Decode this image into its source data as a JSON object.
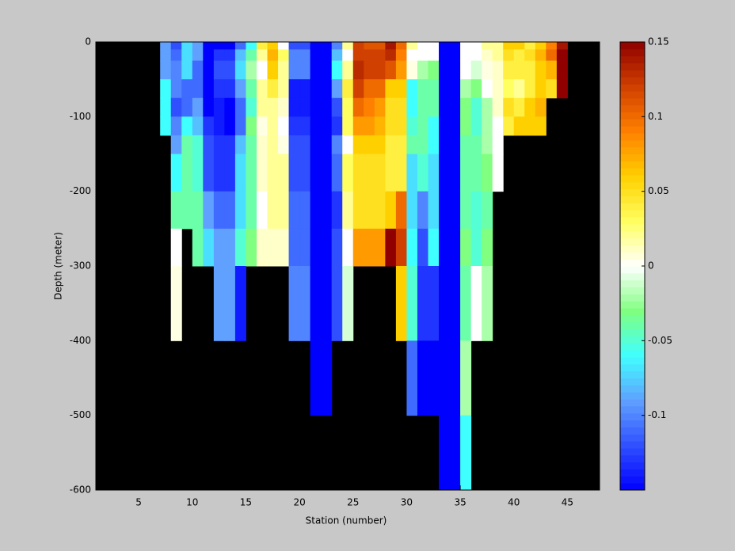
{
  "chart_data": {
    "type": "heatmap",
    "xlabel": "Station (number)",
    "ylabel": "Depth (meter)",
    "xlim": [
      1,
      48
    ],
    "ylim": [
      -600,
      0
    ],
    "xticks": [
      5,
      10,
      15,
      20,
      25,
      30,
      35,
      40,
      45
    ],
    "yticks": [
      0,
      -100,
      -200,
      -300,
      -400,
      -500,
      -600
    ],
    "clim": [
      -0.15,
      0.15
    ],
    "cticks": [
      0.15,
      0.1,
      0.05,
      0,
      -0.05,
      -0.1
    ],
    "background": "#000000",
    "colormap": [
      "#0000ff",
      "#3050ff",
      "#60a0ff",
      "#40ffff",
      "#80ff80",
      "#ffffff",
      "#ffff60",
      "#ffd000",
      "#ff8000",
      "#d04000",
      "#900000"
    ],
    "x_edges": [
      7,
      8,
      9,
      10,
      11,
      12,
      13,
      14,
      15,
      16,
      17,
      18,
      19,
      20,
      21,
      22,
      23,
      24,
      25,
      26,
      27,
      28,
      29,
      30,
      31,
      32,
      33,
      34,
      35,
      36,
      37,
      38,
      39,
      40,
      41,
      42,
      43,
      44,
      45
    ],
    "y_edges": [
      0,
      -10,
      -25,
      -50,
      -75,
      -100,
      -125,
      -150,
      -200,
      -250,
      -300,
      -400,
      -500,
      -600
    ],
    "values": [
      [
        -0.09,
        -0.09,
        -0.09,
        -0.06,
        -0.06,
        -0.06,
        null,
        null,
        null,
        null,
        null,
        null,
        null
      ],
      [
        -0.12,
        -0.11,
        -0.1,
        -0.1,
        -0.12,
        -0.1,
        -0.09,
        -0.06,
        -0.04,
        0,
        0.005,
        null,
        null
      ],
      [
        -0.07,
        -0.07,
        -0.07,
        -0.11,
        -0.11,
        -0.06,
        -0.04,
        -0.04,
        -0.04,
        null,
        null,
        null,
        null
      ],
      [
        -0.09,
        -0.09,
        -0.11,
        -0.11,
        -0.09,
        -0.08,
        -0.05,
        -0.05,
        -0.04,
        -0.04,
        null,
        null,
        null
      ],
      [
        -0.15,
        -0.15,
        -0.15,
        -0.15,
        -0.15,
        -0.13,
        -0.12,
        -0.12,
        -0.09,
        -0.07,
        null,
        null,
        null
      ],
      [
        -0.15,
        -0.13,
        -0.12,
        -0.13,
        -0.14,
        -0.14,
        -0.13,
        -0.13,
        -0.11,
        -0.09,
        -0.09,
        null,
        null
      ],
      [
        -0.15,
        -0.13,
        -0.12,
        -0.13,
        -0.15,
        -0.15,
        -0.13,
        -0.13,
        -0.11,
        -0.09,
        -0.09,
        null,
        null
      ],
      [
        -0.11,
        -0.08,
        -0.07,
        -0.09,
        -0.11,
        -0.11,
        -0.08,
        -0.07,
        -0.07,
        -0.05,
        -0.14,
        null,
        null
      ],
      [
        -0.06,
        -0.04,
        -0.02,
        -0.04,
        -0.05,
        -0.03,
        -0.04,
        -0.04,
        -0.04,
        -0.03,
        null,
        null,
        null
      ],
      [
        0.04,
        0.02,
        0,
        0.02,
        0.02,
        0.005,
        0.01,
        0.01,
        0,
        0.01,
        null,
        null,
        null
      ],
      [
        0.06,
        0.07,
        0.06,
        0.04,
        0.02,
        0.02,
        0.02,
        0.02,
        0.02,
        0.01,
        null,
        null,
        null
      ],
      [
        0,
        0.03,
        0.02,
        0.02,
        0.01,
        0,
        0.005,
        0.02,
        0.02,
        0.01,
        null,
        null,
        null
      ],
      [
        -0.12,
        -0.1,
        -0.1,
        -0.14,
        -0.14,
        -0.13,
        -0.12,
        -0.12,
        -0.11,
        -0.11,
        -0.1,
        null,
        null
      ],
      [
        -0.12,
        -0.1,
        -0.1,
        -0.14,
        -0.14,
        -0.13,
        -0.12,
        -0.12,
        -0.11,
        -0.11,
        -0.1,
        null,
        null
      ],
      [
        -0.15,
        -0.15,
        -0.15,
        -0.15,
        -0.15,
        -0.15,
        -0.15,
        -0.15,
        -0.15,
        -0.15,
        -0.15,
        -0.15,
        null
      ],
      [
        -0.15,
        -0.15,
        -0.15,
        -0.15,
        -0.15,
        -0.15,
        -0.15,
        -0.15,
        -0.15,
        -0.15,
        -0.15,
        -0.15,
        null
      ],
      [
        -0.1,
        -0.08,
        -0.06,
        -0.09,
        -0.12,
        -0.13,
        -0.1,
        -0.11,
        -0.13,
        -0.12,
        -0.12,
        null,
        null
      ],
      [
        0.02,
        0,
        0.02,
        0.04,
        0.03,
        0.03,
        0,
        0.03,
        0.02,
        0,
        -0.01,
        null,
        null
      ],
      [
        0.12,
        0.12,
        0.13,
        0.12,
        0.1,
        0.08,
        0.06,
        0.05,
        0.05,
        0.08,
        null,
        null,
        null
      ],
      [
        0.11,
        0.12,
        0.12,
        0.1,
        0.09,
        0.08,
        0.06,
        0.05,
        0.05,
        0.08,
        null,
        null,
        null
      ],
      [
        0.11,
        0.12,
        0.12,
        0.1,
        0.08,
        0.07,
        0.06,
        0.05,
        0.05,
        0.08,
        null,
        null,
        null
      ],
      [
        0.14,
        0.13,
        0.11,
        0.06,
        0.05,
        0.05,
        0.04,
        0.04,
        0.06,
        0.15,
        null,
        null,
        null
      ],
      [
        0.1,
        0.09,
        0.08,
        0.06,
        0.05,
        0.05,
        0.04,
        0.04,
        0.1,
        0.12,
        0.06,
        null,
        null
      ],
      [
        0.02,
        0,
        0.005,
        -0.06,
        -0.06,
        -0.05,
        -0.04,
        -0.07,
        -0.07,
        -0.06,
        -0.05,
        -0.11,
        null
      ],
      [
        0,
        0,
        -0.02,
        -0.04,
        -0.04,
        -0.04,
        -0.04,
        -0.05,
        -0.1,
        -0.12,
        -0.13,
        -0.15,
        null
      ],
      [
        0,
        0,
        -0.03,
        -0.04,
        -0.04,
        -0.06,
        -0.06,
        -0.07,
        -0.07,
        -0.06,
        -0.13,
        -0.15,
        null
      ],
      [
        -0.15,
        -0.15,
        -0.15,
        -0.15,
        -0.15,
        -0.15,
        -0.15,
        -0.15,
        -0.15,
        -0.15,
        -0.15,
        -0.15,
        -0.15
      ],
      [
        -0.15,
        -0.15,
        -0.15,
        -0.15,
        -0.15,
        -0.15,
        -0.15,
        -0.15,
        -0.15,
        -0.15,
        -0.15,
        -0.15,
        -0.15
      ],
      [
        0,
        0,
        0,
        -0.02,
        -0.03,
        -0.03,
        -0.04,
        -0.04,
        -0.04,
        -0.03,
        -0.04,
        -0.02,
        -0.06
      ],
      [
        0,
        0,
        -0.01,
        -0.03,
        -0.05,
        -0.05,
        -0.04,
        -0.04,
        -0.05,
        -0.05,
        0,
        null,
        null
      ],
      [
        0.02,
        0.01,
        0.005,
        0,
        -0.02,
        -0.02,
        -0.02,
        -0.03,
        -0.04,
        -0.03,
        -0.02,
        null,
        null
      ],
      [
        0.02,
        0.02,
        0.01,
        0.01,
        0.01,
        0,
        0,
        0,
        null,
        null,
        null,
        null,
        null
      ],
      [
        0.06,
        0.05,
        0.04,
        0.03,
        0.05,
        0.04,
        null,
        null,
        null,
        null,
        null,
        null,
        null
      ],
      [
        0.06,
        0.04,
        0.04,
        0.02,
        0.04,
        0.06,
        null,
        null,
        null,
        null,
        null,
        null,
        null
      ],
      [
        0.04,
        0.05,
        0.04,
        0.04,
        0.06,
        0.06,
        null,
        null,
        null,
        null,
        null,
        null,
        null
      ],
      [
        0.06,
        0.07,
        0.06,
        0.06,
        0.07,
        0.06,
        null,
        null,
        null,
        null,
        null,
        null,
        null
      ],
      [
        0.09,
        0.1,
        0.07,
        0.05,
        null,
        null,
        null,
        null,
        null,
        null,
        null,
        null,
        null
      ],
      [
        0.14,
        0.15,
        0.15,
        0.15,
        null,
        null,
        null,
        null,
        null,
        null,
        null,
        null,
        null
      ]
    ]
  }
}
